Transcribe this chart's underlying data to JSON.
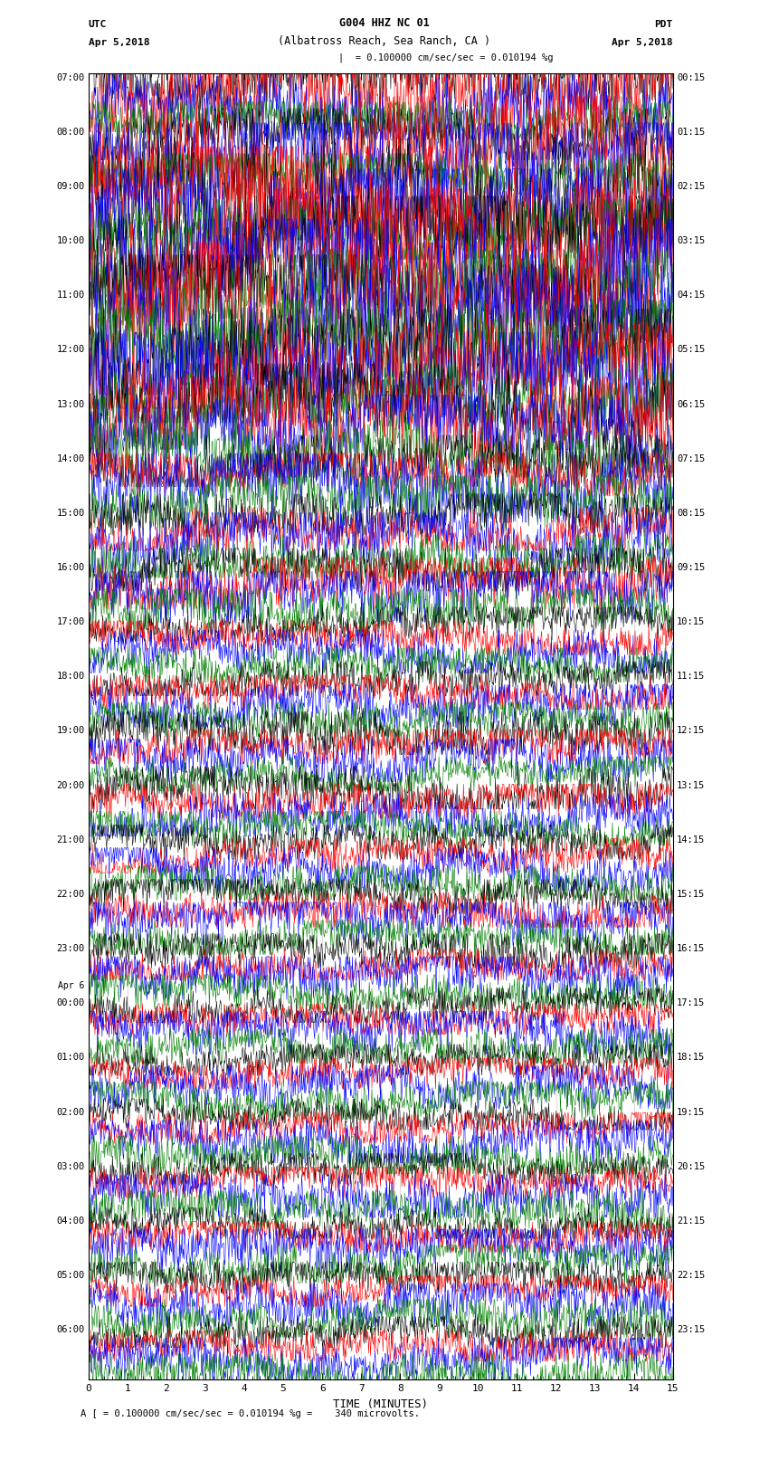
{
  "title_line1": "G004 HHZ NC 01",
  "title_line2": "(Albatross Reach, Sea Ranch, CA )",
  "scale_label": "= 0.100000 cm/sec/sec = 0.010194 %g",
  "footer_label": "0.100000 cm/sec/sec = 0.010194 %g =    340 microvolts.",
  "utc_label": "UTC",
  "utc_date": "Apr 5,2018",
  "pdt_label": "PDT",
  "pdt_date": "Apr 5,2018",
  "xlabel": "TIME (MINUTES)",
  "x_ticks": [
    0,
    1,
    2,
    3,
    4,
    5,
    6,
    7,
    8,
    9,
    10,
    11,
    12,
    13,
    14,
    15
  ],
  "colors": [
    "black",
    "red",
    "blue",
    "green"
  ],
  "n_rows": 96,
  "n_samples": 900,
  "background_color": "white",
  "left_label_times": [
    "07:00",
    "08:00",
    "09:00",
    "10:00",
    "11:00",
    "12:00",
    "13:00",
    "14:00",
    "15:00",
    "16:00",
    "17:00",
    "18:00",
    "19:00",
    "20:00",
    "21:00",
    "22:00",
    "23:00",
    "00:00",
    "01:00",
    "02:00",
    "03:00",
    "04:00",
    "05:00",
    "06:00"
  ],
  "right_label_times": [
    "00:15",
    "01:15",
    "02:15",
    "03:15",
    "04:15",
    "05:15",
    "06:15",
    "07:15",
    "08:15",
    "09:15",
    "10:15",
    "11:15",
    "12:15",
    "13:15",
    "14:15",
    "15:15",
    "16:15",
    "17:15",
    "18:15",
    "19:15",
    "20:15",
    "21:15",
    "22:15",
    "23:15"
  ],
  "amplitude_by_row": [
    3.5,
    4.5,
    3.8,
    2.2,
    3.0,
    6.0,
    4.5,
    2.5,
    6.0,
    6.5,
    5.5,
    3.5,
    5.5,
    8.0,
    6.0,
    4.0,
    5.0,
    8.0,
    7.0,
    4.5,
    5.0,
    5.0,
    5.5,
    3.5,
    5.0,
    5.0,
    4.5,
    3.5,
    3.0,
    2.5,
    4.0,
    3.0,
    2.5,
    2.5,
    3.5,
    2.5,
    2.5,
    3.0,
    3.0,
    2.5,
    2.0,
    2.0,
    2.5,
    2.0,
    2.0,
    2.0,
    2.5,
    2.0,
    2.5,
    2.0,
    2.5,
    2.0,
    2.5,
    2.0,
    2.5,
    2.0,
    2.0,
    2.0,
    2.5,
    2.0,
    2.0,
    2.0,
    2.5,
    2.0,
    2.0,
    1.8,
    2.5,
    2.0,
    2.0,
    1.8,
    2.5,
    2.0,
    1.8,
    1.8,
    2.5,
    2.2,
    1.8,
    1.8,
    2.5,
    2.2,
    1.8,
    1.8,
    2.5,
    2.2,
    1.8,
    1.8,
    2.5,
    2.2,
    1.8,
    1.8,
    2.5,
    2.2,
    1.8,
    1.8,
    2.5,
    2.2
  ]
}
